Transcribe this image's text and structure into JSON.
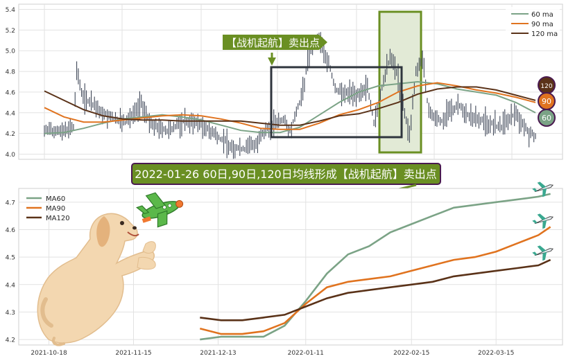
{
  "colors": {
    "ma60": "#7ba386",
    "ma90": "#e0731f",
    "ma120": "#5a3218",
    "price": "#3f4758",
    "annotation_green": "#6a8f23",
    "highlight_fill": "#e2ead6",
    "box_dark": "#2f353d",
    "banner_bg": "#6a8f23",
    "banner_border": "#4a1a50",
    "plane_body": "#5bb84a",
    "plane_orange": "#f07830"
  },
  "icons": {
    "top_plane_1": "airplane-icon",
    "top_plane_2": "airplane-icon",
    "top_plane_3": "airplane-icon",
    "dog": "puppy-illustration",
    "toy_plane": "toy-airplane-illustration"
  },
  "top_chart": {
    "annotation": "【战机起航】卖出点",
    "badges": {
      "ma120": "120",
      "ma90": "90",
      "ma60": "60"
    }
  },
  "banner": {
    "text": "2022-01-26 60日,90日,120日均线形成【战机起航】卖出点"
  },
  "chart_data": [
    {
      "type": "line",
      "title": "",
      "ylim": [
        3.95,
        5.45
      ],
      "yticks": [
        "4.0",
        "4.2",
        "4.4",
        "4.6",
        "4.8",
        "5.0",
        "5.2",
        "5.4"
      ],
      "yticks_values": [
        4.0,
        4.2,
        4.4,
        4.6,
        4.8,
        5.0,
        5.2,
        5.4
      ],
      "grid": true,
      "legend_position": "top-right",
      "series": [
        {
          "name": "60 ma",
          "key": "ma60",
          "x": [
            0,
            10,
            20,
            30,
            40,
            50,
            60,
            70,
            80,
            90,
            100,
            110,
            120,
            130,
            140,
            150,
            160,
            170,
            180,
            190,
            200,
            210,
            220,
            230,
            240,
            250
          ],
          "values": [
            4.2,
            4.21,
            4.25,
            4.3,
            4.34,
            4.36,
            4.38,
            4.36,
            4.33,
            4.28,
            4.23,
            4.21,
            4.21,
            4.26,
            4.38,
            4.5,
            4.6,
            4.66,
            4.68,
            4.7,
            4.68,
            4.63,
            4.6,
            4.57,
            4.5,
            4.4
          ]
        },
        {
          "name": "90 ma",
          "key": "ma90",
          "x": [
            0,
            10,
            20,
            30,
            40,
            50,
            60,
            70,
            80,
            90,
            100,
            110,
            120,
            130,
            140,
            150,
            160,
            170,
            180,
            190,
            200,
            210,
            220,
            230,
            240,
            250
          ],
          "values": [
            4.45,
            4.36,
            4.31,
            4.31,
            4.33,
            4.35,
            4.37,
            4.38,
            4.37,
            4.34,
            4.3,
            4.25,
            4.24,
            4.24,
            4.3,
            4.38,
            4.43,
            4.5,
            4.6,
            4.66,
            4.69,
            4.66,
            4.62,
            4.59,
            4.55,
            4.5
          ]
        },
        {
          "name": "120 ma",
          "key": "ma120",
          "x": [
            0,
            10,
            20,
            30,
            40,
            50,
            60,
            70,
            80,
            90,
            100,
            110,
            120,
            130,
            140,
            150,
            160,
            170,
            180,
            190,
            200,
            210,
            220,
            230,
            240,
            250
          ],
          "values": [
            4.61,
            4.52,
            4.43,
            4.37,
            4.34,
            4.33,
            4.33,
            4.32,
            4.32,
            4.32,
            4.32,
            4.3,
            4.28,
            4.28,
            4.32,
            4.37,
            4.39,
            4.44,
            4.5,
            4.58,
            4.63,
            4.65,
            4.65,
            4.62,
            4.57,
            4.52
          ]
        }
      ]
    },
    {
      "type": "line",
      "title": "",
      "ylim": [
        4.18,
        4.75
      ],
      "yticks": [
        "4.2",
        "4.3",
        "4.4",
        "4.5",
        "4.6",
        "4.7"
      ],
      "yticks_values": [
        4.2,
        4.3,
        4.4,
        4.5,
        4.6,
        4.7
      ],
      "xlim": [
        "2021-10-08",
        "2022-04-06"
      ],
      "xticks": [
        "2021-10-18",
        "2021-11-15",
        "2021-12-13",
        "2022-01-11",
        "2022-02-15",
        "2022-03-15"
      ],
      "grid": true,
      "legend_position": "top-left",
      "series": [
        {
          "name": "MA60",
          "key": "ma60",
          "x": [
            "2021-12-07",
            "2021-12-14",
            "2021-12-21",
            "2021-12-28",
            "2022-01-04",
            "2022-01-11",
            "2022-01-18",
            "2022-01-25",
            "2022-02-01",
            "2022-02-08",
            "2022-02-15",
            "2022-02-22",
            "2022-03-01",
            "2022-03-08",
            "2022-03-15",
            "2022-03-22",
            "2022-03-29",
            "2022-04-02"
          ],
          "values": [
            4.2,
            4.21,
            4.21,
            4.21,
            4.25,
            4.34,
            4.44,
            4.51,
            4.54,
            4.59,
            4.62,
            4.65,
            4.68,
            4.69,
            4.7,
            4.71,
            4.72,
            4.73
          ]
        },
        {
          "name": "MA90",
          "key": "ma90",
          "x": [
            "2021-12-07",
            "2021-12-14",
            "2021-12-21",
            "2021-12-28",
            "2022-01-04",
            "2022-01-11",
            "2022-01-18",
            "2022-01-25",
            "2022-02-01",
            "2022-02-08",
            "2022-02-15",
            "2022-02-22",
            "2022-03-01",
            "2022-03-08",
            "2022-03-15",
            "2022-03-22",
            "2022-03-29",
            "2022-04-02"
          ],
          "values": [
            4.24,
            4.22,
            4.22,
            4.23,
            4.26,
            4.33,
            4.39,
            4.41,
            4.42,
            4.43,
            4.45,
            4.47,
            4.49,
            4.5,
            4.52,
            4.55,
            4.58,
            4.61
          ]
        },
        {
          "name": "MA120",
          "key": "ma120",
          "x": [
            "2021-12-07",
            "2021-12-14",
            "2021-12-21",
            "2021-12-28",
            "2022-01-04",
            "2022-01-11",
            "2022-01-18",
            "2022-01-25",
            "2022-02-01",
            "2022-02-08",
            "2022-02-15",
            "2022-02-22",
            "2022-03-01",
            "2022-03-08",
            "2022-03-15",
            "2022-03-22",
            "2022-03-29",
            "2022-04-02"
          ],
          "values": [
            4.28,
            4.27,
            4.27,
            4.28,
            4.29,
            4.32,
            4.35,
            4.37,
            4.38,
            4.39,
            4.4,
            4.41,
            4.43,
            4.44,
            4.45,
            4.46,
            4.47,
            4.49
          ]
        }
      ]
    }
  ]
}
